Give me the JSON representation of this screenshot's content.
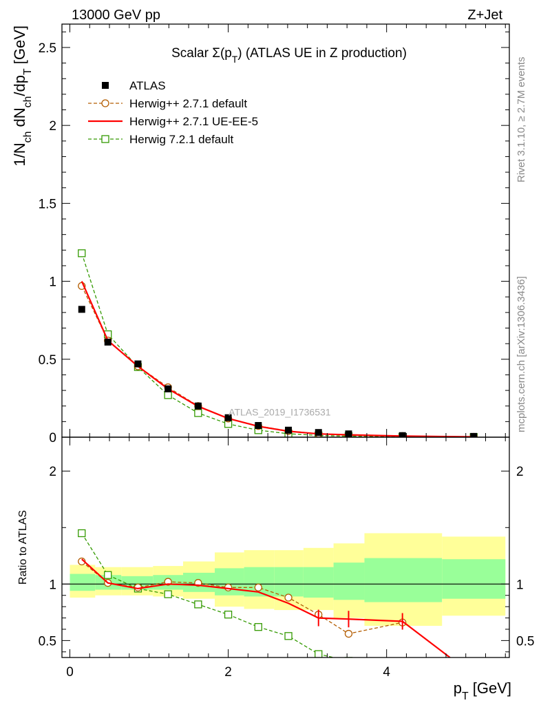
{
  "header": {
    "left": "13000 GeV pp",
    "right": "Z+Jet"
  },
  "side": {
    "rivet": "Rivet 3.1.10, ≥ 2.7M events",
    "mcplots": "mcplots.cern.ch [arXiv:1306.3436]"
  },
  "chart_data": {
    "type": "line",
    "title": "Scalar Σ(p_T) (ATLAS UE in Z production)",
    "watermark": "ATLAS_2019_I1736531",
    "xlabel": "p_T [GeV]",
    "ylabel": "1/N_ch dN_ch/dp_T [GeV]",
    "ratio_ylabel": "Ratio to ATLAS",
    "xlim": [
      -0.1,
      5.55
    ],
    "ylim": [
      0,
      2.65
    ],
    "ratio_ylim": [
      0.35,
      2.3
    ],
    "x_ticks": [
      "0",
      "2",
      "4"
    ],
    "y_ticks": [
      "0",
      "0.5",
      "1",
      "1.5",
      "2",
      "2.5"
    ],
    "ratio_y_ticks": [
      "0.5",
      "1",
      "2"
    ],
    "legend_position": "top-left",
    "x": [
      0.15,
      0.48,
      0.86,
      1.24,
      1.62,
      2.0,
      2.38,
      2.76,
      3.14,
      3.52,
      4.2,
      5.1
    ],
    "series": [
      {
        "name": "ATLAS",
        "style": "data",
        "color": "#000000",
        "values": [
          0.82,
          0.61,
          0.47,
          0.31,
          0.2,
          0.125,
          0.075,
          0.045,
          0.03,
          0.021,
          0.01,
          0.005
        ]
      },
      {
        "name": "Herwig++ 2.7.1 default",
        "style": "dashed-circle",
        "color": "#b35c00",
        "values": [
          0.97,
          0.62,
          0.455,
          0.32,
          0.2,
          0.12,
          0.072,
          0.04,
          0.022,
          0.012,
          0.007,
          0.002
        ]
      },
      {
        "name": "Herwig++ 2.7.1 UE-EE-5",
        "style": "solid",
        "color": "#ff0000",
        "values": [
          1.0,
          0.62,
          0.455,
          0.31,
          0.198,
          0.12,
          0.07,
          0.038,
          0.021,
          0.015,
          0.007,
          0.002
        ]
      },
      {
        "name": "Herwig 7.2.1 default",
        "style": "dashed-square",
        "color": "#339900",
        "values": [
          1.18,
          0.66,
          0.45,
          0.27,
          0.155,
          0.085,
          0.045,
          0.022,
          0.011,
          0.006,
          0.002,
          0.001
        ]
      }
    ],
    "ratio": {
      "Herwig++ 2.7.1 default": [
        1.2,
        1.01,
        0.97,
        1.02,
        1.01,
        0.97,
        0.97,
        0.88,
        0.73,
        0.56,
        0.66,
        null
      ],
      "Herwig++ 2.7.1 UE-EE-5": [
        1.22,
        1.01,
        0.96,
        1.0,
        0.99,
        0.96,
        0.93,
        0.83,
        0.7,
        0.69,
        0.67,
        0.35
      ],
      "Herwig 7.2.1 default": [
        1.45,
        1.08,
        0.96,
        0.91,
        0.82,
        0.73,
        0.62,
        0.54,
        0.38,
        0.32,
        null,
        null
      ],
      "ue_ee5_stop_x": 4.8
    },
    "uncertainty_bands": {
      "edges": [
        0.0,
        0.32,
        0.65,
        1.05,
        1.43,
        1.83,
        2.2,
        2.58,
        2.95,
        3.33,
        3.72,
        4.7,
        5.5
      ],
      "yellow": [
        [
          0.88,
          1.17
        ],
        [
          0.9,
          1.15
        ],
        [
          0.9,
          1.15
        ],
        [
          0.89,
          1.16
        ],
        [
          0.87,
          1.2
        ],
        [
          0.8,
          1.28
        ],
        [
          0.78,
          1.3
        ],
        [
          0.77,
          1.3
        ],
        [
          0.77,
          1.32
        ],
        [
          0.7,
          1.36
        ],
        [
          0.63,
          1.45
        ],
        [
          0.72,
          1.42
        ]
      ],
      "green": [
        [
          0.94,
          1.09
        ],
        [
          0.95,
          1.08
        ],
        [
          0.95,
          1.07
        ],
        [
          0.95,
          1.08
        ],
        [
          0.93,
          1.1
        ],
        [
          0.9,
          1.14
        ],
        [
          0.89,
          1.15
        ],
        [
          0.89,
          1.15
        ],
        [
          0.88,
          1.15
        ],
        [
          0.86,
          1.19
        ],
        [
          0.84,
          1.23
        ],
        [
          0.87,
          1.22
        ]
      ]
    },
    "colors": {
      "yellow_band": "#ffff99",
      "green_band": "#99ff99"
    }
  }
}
